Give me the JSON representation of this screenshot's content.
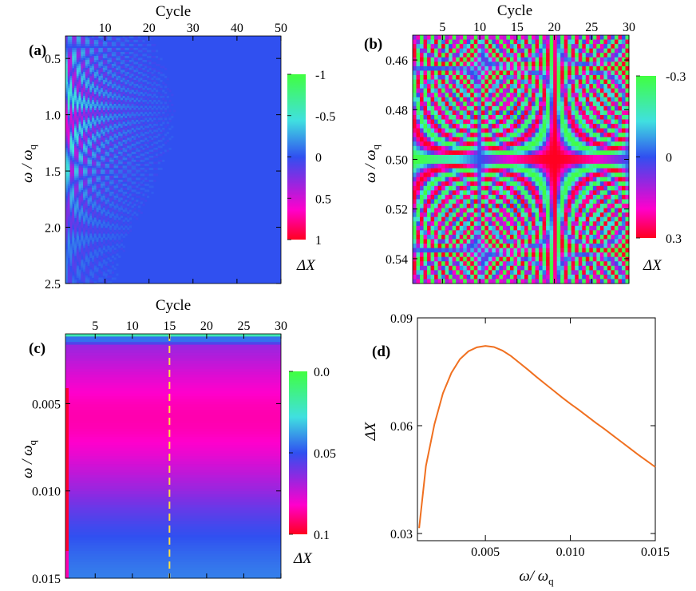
{
  "colorscale": [
    "#ff0020",
    "#ff00cc",
    "#8a2be2",
    "#3050f0",
    "#40e0e0",
    "#40ff40"
  ],
  "chart_data": [
    {
      "type": "heatmap",
      "panel_label": "(a)",
      "xlabel": "Cycle",
      "ylabel_main": "ω / ω",
      "ylabel_sub": "q",
      "xlim": [
        1,
        50
      ],
      "ylim": [
        0.3,
        2.5
      ],
      "x_ticks": [
        "10",
        "20",
        "30",
        "40",
        "50"
      ],
      "x_tick_values": [
        10,
        20,
        30,
        40,
        50
      ],
      "y_ticks": [
        "0.5",
        "1.0",
        "1.5",
        "2.0",
        "2.5"
      ],
      "y_tick_values": [
        0.5,
        1.0,
        1.5,
        2.0,
        2.5
      ],
      "colorbar": {
        "label": "ΔX",
        "tick_labels": [
          "-1",
          "-0.5",
          "0",
          "0.5",
          "1"
        ],
        "tick_values": [
          -1,
          -0.5,
          0,
          0.5,
          1
        ],
        "range": [
          -1,
          1
        ]
      }
    },
    {
      "type": "heatmap",
      "panel_label": "(b)",
      "xlabel": "Cycle",
      "ylabel_main": "ω / ω",
      "ylabel_sub": "q",
      "xlim": [
        1,
        30
      ],
      "ylim": [
        0.45,
        0.55
      ],
      "x_ticks": [
        "5",
        "10",
        "15",
        "20",
        "25",
        "30"
      ],
      "x_tick_values": [
        5,
        10,
        15,
        20,
        25,
        30
      ],
      "y_ticks": [
        "0.46",
        "0.48",
        "0.50",
        "0.52",
        "0.54"
      ],
      "y_tick_values": [
        0.46,
        0.48,
        0.5,
        0.52,
        0.54
      ],
      "colorbar": {
        "label": "ΔX",
        "tick_labels": [
          "-0.3",
          "0",
          "0.3"
        ],
        "tick_values": [
          -0.3,
          0,
          0.3
        ],
        "range": [
          -0.3,
          0.3
        ]
      }
    },
    {
      "type": "heatmap",
      "panel_label": "(c)",
      "xlabel": "Cycle",
      "ylabel_main": "ω / ω",
      "ylabel_sub": "q",
      "xlim": [
        1,
        30
      ],
      "ylim": [
        0.001,
        0.015
      ],
      "x_ticks": [
        "5",
        "10",
        "15",
        "20",
        "25",
        "30"
      ],
      "x_tick_values": [
        5,
        10,
        15,
        20,
        25,
        30
      ],
      "y_ticks": [
        "0.005",
        "0.010",
        "0.015"
      ],
      "y_tick_values": [
        0.005,
        0.01,
        0.015
      ],
      "dashed_line_cycle": 15,
      "colorbar": {
        "label": "ΔX",
        "tick_labels": [
          "0.0",
          "0.05",
          "0.1"
        ],
        "tick_values": [
          0.0,
          0.05,
          0.1
        ],
        "range": [
          0.0,
          0.1
        ]
      }
    },
    {
      "type": "line",
      "panel_label": "(d)",
      "xlabel_main": "ω/ ω",
      "xlabel_sub": "q",
      "ylabel": "ΔX",
      "xlim": [
        0.001,
        0.015
      ],
      "ylim": [
        0.028,
        0.09
      ],
      "x_ticks": [
        "0.005",
        "0.010",
        "0.015"
      ],
      "x_tick_values": [
        0.005,
        0.01,
        0.015
      ],
      "y_ticks": [
        "0.03",
        "0.06",
        "0.09"
      ],
      "y_tick_values": [
        0.03,
        0.06,
        0.09
      ],
      "line_color": "#f07020",
      "series": [
        {
          "name": "ΔX",
          "x": [
            0.0011,
            0.0015,
            0.002,
            0.0025,
            0.003,
            0.0035,
            0.004,
            0.0045,
            0.005,
            0.0055,
            0.006,
            0.0065,
            0.007,
            0.0075,
            0.008,
            0.0085,
            0.009,
            0.0095,
            0.01,
            0.0105,
            0.011,
            0.0115,
            0.012,
            0.0125,
            0.013,
            0.0135,
            0.014,
            0.0145,
            0.015
          ],
          "y": [
            0.0315,
            0.0488,
            0.0604,
            0.069,
            0.0747,
            0.0785,
            0.0807,
            0.0818,
            0.0822,
            0.0819,
            0.0809,
            0.0794,
            0.0775,
            0.0756,
            0.0736,
            0.0717,
            0.0698,
            0.0679,
            0.0661,
            0.0644,
            0.0626,
            0.0608,
            0.0591,
            0.0573,
            0.0555,
            0.0537,
            0.0519,
            0.0502,
            0.0485
          ]
        }
      ]
    }
  ]
}
